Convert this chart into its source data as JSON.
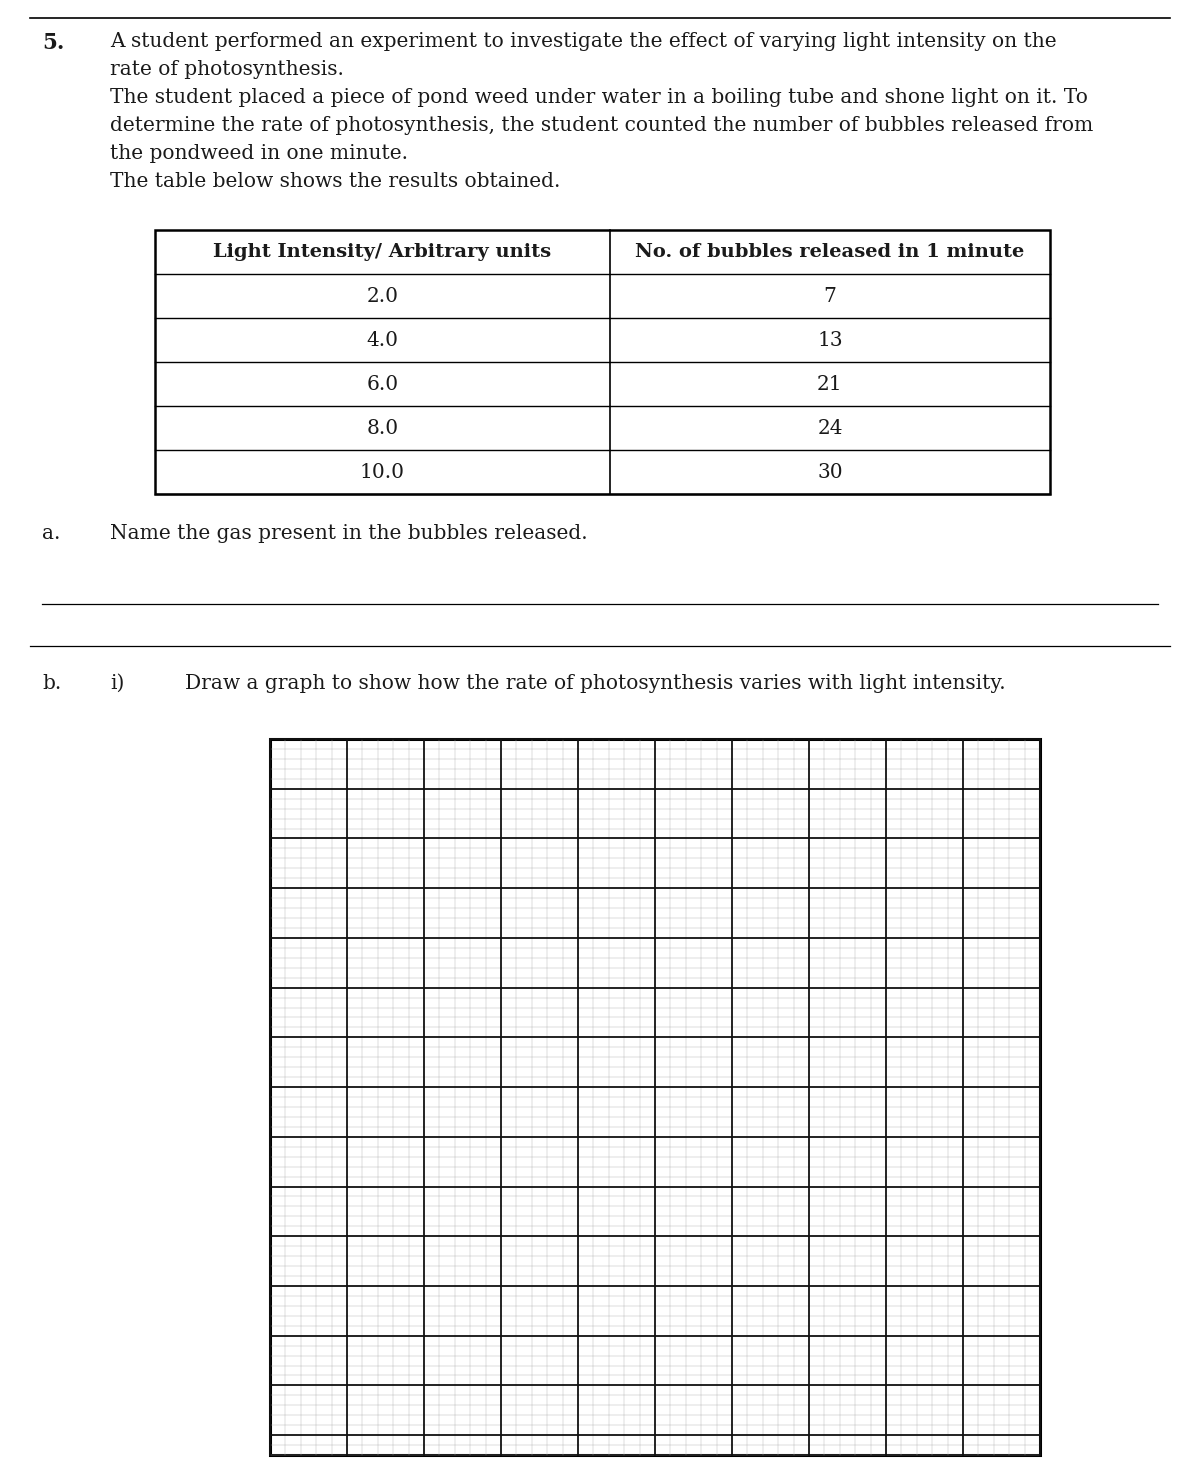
{
  "question_number": "5.",
  "question_text_line1": "A student performed an experiment to investigate the effect of varying light intensity on the",
  "question_text_line2": "rate of photosynthesis.",
  "question_text_line3": "The student placed a piece of pond weed under water in a boiling tube and shone light on it. To",
  "question_text_line4": "determine the rate of photosynthesis, the student counted the number of bubbles released from",
  "question_text_line5": "the pondweed in one minute.",
  "question_text_line6": "The table below shows the results obtained.",
  "table_header_col1": "Light Intensity/ Arbitrary units",
  "table_header_col2": "No. of bubbles released in 1 minute",
  "table_data": [
    [
      2.0,
      7
    ],
    [
      4.0,
      13
    ],
    [
      6.0,
      21
    ],
    [
      8.0,
      24
    ],
    [
      10.0,
      30
    ]
  ],
  "part_a_label": "a.",
  "part_a_text": "Name the gas present in the bubbles released.",
  "part_b_label": "b.",
  "part_b_sub_label": "i)",
  "part_b_text": "Draw a graph to show how the rate of photosynthesis varies with light intensity.",
  "background_color": "#ffffff",
  "text_color": "#1a1a1a",
  "top_line_color": "#000000",
  "font_size_body": 14.5,
  "minor_cols": 50,
  "minor_rows": 72,
  "major_every": 5
}
